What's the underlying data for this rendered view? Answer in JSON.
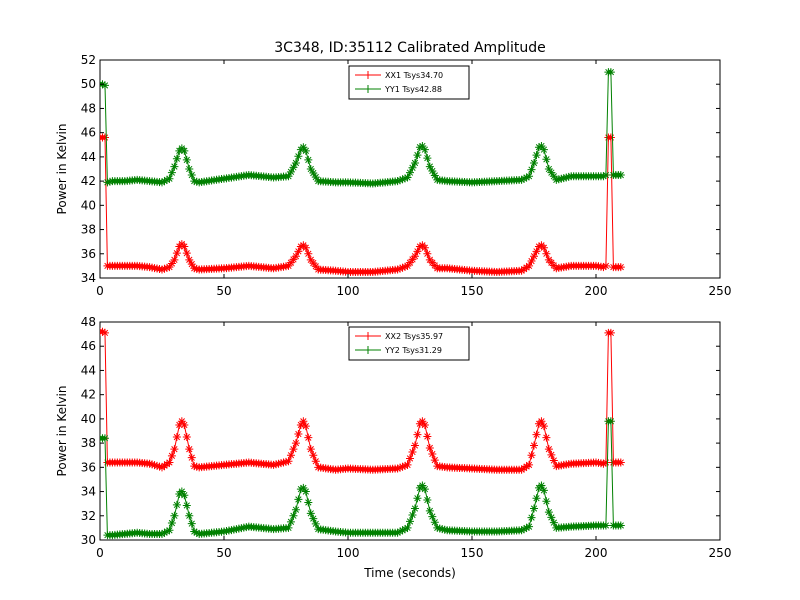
{
  "chart_data": [
    {
      "type": "line",
      "title": "3C348, ID:35112 Calibrated Amplitude",
      "xlabel": "",
      "ylabel": "Power in Kelvin",
      "xlim": [
        0,
        250
      ],
      "ylim": [
        34,
        52
      ],
      "xticks": [
        0,
        50,
        100,
        150,
        200,
        250
      ],
      "yticks": [
        34,
        36,
        38,
        40,
        42,
        44,
        46,
        48,
        50,
        52
      ],
      "grid": false,
      "legend_position": "top-center",
      "series": [
        {
          "name": "XX1 Tsys34.70",
          "color": "#ff0000",
          "marker": "star-plus",
          "points": [
            [
              0,
              45.6
            ],
            [
              1,
              45.6
            ],
            [
              2,
              45.6
            ],
            [
              3,
              35.0
            ],
            [
              5,
              35.0
            ],
            [
              10,
              35.0
            ],
            [
              15,
              35.0
            ],
            [
              20,
              34.9
            ],
            [
              25,
              34.7
            ],
            [
              28,
              34.9
            ],
            [
              30,
              35.5
            ],
            [
              32,
              36.6
            ],
            [
              33,
              36.8
            ],
            [
              34,
              36.6
            ],
            [
              36,
              35.5
            ],
            [
              38,
              34.8
            ],
            [
              40,
              34.7
            ],
            [
              50,
              34.8
            ],
            [
              60,
              35.0
            ],
            [
              70,
              34.8
            ],
            [
              76,
              35.0
            ],
            [
              79,
              35.8
            ],
            [
              81,
              36.6
            ],
            [
              82,
              36.7
            ],
            [
              83,
              36.5
            ],
            [
              85,
              35.5
            ],
            [
              88,
              34.7
            ],
            [
              95,
              34.6
            ],
            [
              100,
              34.5
            ],
            [
              110,
              34.5
            ],
            [
              120,
              34.7
            ],
            [
              124,
              35.0
            ],
            [
              127,
              35.8
            ],
            [
              129,
              36.6
            ],
            [
              130,
              36.7
            ],
            [
              131,
              36.5
            ],
            [
              133,
              35.5
            ],
            [
              136,
              34.8
            ],
            [
              140,
              34.8
            ],
            [
              150,
              34.6
            ],
            [
              160,
              34.5
            ],
            [
              170,
              34.6
            ],
            [
              173,
              35.0
            ],
            [
              175,
              35.8
            ],
            [
              177,
              36.6
            ],
            [
              178,
              36.7
            ],
            [
              179,
              36.5
            ],
            [
              181,
              35.5
            ],
            [
              184,
              34.8
            ],
            [
              190,
              35.0
            ],
            [
              200,
              35.0
            ],
            [
              203,
              34.9
            ],
            [
              204,
              35.0
            ],
            [
              205,
              45.6
            ],
            [
              206,
              45.6
            ],
            [
              207,
              34.9
            ],
            [
              209,
              34.9
            ],
            [
              210,
              34.9
            ]
          ]
        },
        {
          "name": "YY1 Tsys42.88",
          "color": "#008000",
          "marker": "star-plus",
          "points": [
            [
              0,
              50.0
            ],
            [
              1,
              50.0
            ],
            [
              2,
              49.9
            ],
            [
              3,
              41.9
            ],
            [
              5,
              42.0
            ],
            [
              10,
              42.0
            ],
            [
              15,
              42.1
            ],
            [
              20,
              42.0
            ],
            [
              25,
              41.9
            ],
            [
              28,
              42.2
            ],
            [
              30,
              43.2
            ],
            [
              32,
              44.5
            ],
            [
              33,
              44.7
            ],
            [
              34,
              44.5
            ],
            [
              36,
              43.0
            ],
            [
              38,
              42.0
            ],
            [
              40,
              41.9
            ],
            [
              50,
              42.2
            ],
            [
              60,
              42.5
            ],
            [
              70,
              42.3
            ],
            [
              76,
              42.4
            ],
            [
              79,
              43.5
            ],
            [
              81,
              44.6
            ],
            [
              82,
              44.8
            ],
            [
              83,
              44.5
            ],
            [
              85,
              43.0
            ],
            [
              88,
              42.0
            ],
            [
              95,
              41.9
            ],
            [
              100,
              41.9
            ],
            [
              110,
              41.8
            ],
            [
              120,
              42.0
            ],
            [
              124,
              42.3
            ],
            [
              127,
              43.5
            ],
            [
              129,
              44.8
            ],
            [
              130,
              44.9
            ],
            [
              131,
              44.6
            ],
            [
              133,
              43.2
            ],
            [
              136,
              42.1
            ],
            [
              140,
              42.0
            ],
            [
              150,
              41.9
            ],
            [
              160,
              42.0
            ],
            [
              170,
              42.1
            ],
            [
              173,
              42.4
            ],
            [
              175,
              43.5
            ],
            [
              177,
              44.8
            ],
            [
              178,
              44.9
            ],
            [
              179,
              44.6
            ],
            [
              181,
              43.0
            ],
            [
              184,
              42.1
            ],
            [
              190,
              42.4
            ],
            [
              200,
              42.4
            ],
            [
              203,
              42.4
            ],
            [
              204,
              42.5
            ],
            [
              205,
              51.0
            ],
            [
              206,
              51.0
            ],
            [
              207,
              42.5
            ],
            [
              209,
              42.5
            ],
            [
              210,
              42.5
            ]
          ]
        }
      ]
    },
    {
      "type": "line",
      "title": "",
      "xlabel": "Time (seconds)",
      "ylabel": "Power in Kelvin",
      "xlim": [
        0,
        250
      ],
      "ylim": [
        30,
        48
      ],
      "xticks": [
        0,
        50,
        100,
        150,
        200,
        250
      ],
      "yticks": [
        30,
        32,
        34,
        36,
        38,
        40,
        42,
        44,
        46,
        48
      ],
      "grid": false,
      "legend_position": "top-center",
      "series": [
        {
          "name": "XX2 Tsys35.97",
          "color": "#ff0000",
          "marker": "star-plus",
          "points": [
            [
              0,
              47.2
            ],
            [
              1,
              47.2
            ],
            [
              2,
              47.1
            ],
            [
              3,
              36.4
            ],
            [
              5,
              36.4
            ],
            [
              10,
              36.4
            ],
            [
              15,
              36.4
            ],
            [
              20,
              36.3
            ],
            [
              25,
              36.0
            ],
            [
              28,
              36.4
            ],
            [
              30,
              37.5
            ],
            [
              32,
              39.5
            ],
            [
              33,
              39.8
            ],
            [
              34,
              39.5
            ],
            [
              36,
              37.5
            ],
            [
              38,
              36.1
            ],
            [
              40,
              36.0
            ],
            [
              50,
              36.2
            ],
            [
              60,
              36.4
            ],
            [
              70,
              36.2
            ],
            [
              76,
              36.5
            ],
            [
              79,
              38.0
            ],
            [
              81,
              39.5
            ],
            [
              82,
              39.8
            ],
            [
              83,
              39.4
            ],
            [
              85,
              37.5
            ],
            [
              88,
              36.0
            ],
            [
              95,
              35.8
            ],
            [
              100,
              35.9
            ],
            [
              110,
              35.8
            ],
            [
              120,
              35.9
            ],
            [
              124,
              36.2
            ],
            [
              127,
              37.8
            ],
            [
              129,
              39.6
            ],
            [
              130,
              39.8
            ],
            [
              131,
              39.5
            ],
            [
              133,
              37.6
            ],
            [
              136,
              36.1
            ],
            [
              140,
              36.0
            ],
            [
              150,
              35.9
            ],
            [
              160,
              35.8
            ],
            [
              170,
              35.8
            ],
            [
              173,
              36.2
            ],
            [
              175,
              37.8
            ],
            [
              177,
              39.6
            ],
            [
              178,
              39.8
            ],
            [
              179,
              39.4
            ],
            [
              181,
              37.5
            ],
            [
              184,
              36.1
            ],
            [
              190,
              36.3
            ],
            [
              200,
              36.4
            ],
            [
              203,
              36.3
            ],
            [
              204,
              36.4
            ],
            [
              205,
              47.1
            ],
            [
              206,
              47.1
            ],
            [
              207,
              36.4
            ],
            [
              209,
              36.4
            ],
            [
              210,
              36.4
            ]
          ]
        },
        {
          "name": "YY2 Tsys31.29",
          "color": "#008000",
          "marker": "star-plus",
          "points": [
            [
              0,
              38.4
            ],
            [
              1,
              38.4
            ],
            [
              2,
              38.4
            ],
            [
              3,
              30.4
            ],
            [
              5,
              30.4
            ],
            [
              10,
              30.5
            ],
            [
              15,
              30.6
            ],
            [
              20,
              30.5
            ],
            [
              25,
              30.5
            ],
            [
              28,
              30.8
            ],
            [
              30,
              32.0
            ],
            [
              32,
              33.8
            ],
            [
              33,
              34.0
            ],
            [
              34,
              33.7
            ],
            [
              36,
              32.0
            ],
            [
              38,
              30.7
            ],
            [
              40,
              30.5
            ],
            [
              50,
              30.7
            ],
            [
              60,
              31.1
            ],
            [
              70,
              30.9
            ],
            [
              76,
              31.0
            ],
            [
              79,
              32.5
            ],
            [
              81,
              34.2
            ],
            [
              82,
              34.3
            ],
            [
              83,
              34.0
            ],
            [
              85,
              32.2
            ],
            [
              88,
              30.9
            ],
            [
              95,
              30.7
            ],
            [
              100,
              30.6
            ],
            [
              110,
              30.6
            ],
            [
              120,
              30.6
            ],
            [
              124,
              31.0
            ],
            [
              127,
              32.6
            ],
            [
              129,
              34.3
            ],
            [
              130,
              34.5
            ],
            [
              131,
              34.2
            ],
            [
              133,
              32.4
            ],
            [
              136,
              31.0
            ],
            [
              140,
              30.8
            ],
            [
              150,
              30.7
            ],
            [
              160,
              30.7
            ],
            [
              170,
              30.8
            ],
            [
              173,
              31.1
            ],
            [
              175,
              32.6
            ],
            [
              177,
              34.3
            ],
            [
              178,
              34.5
            ],
            [
              179,
              34.1
            ],
            [
              181,
              32.3
            ],
            [
              184,
              31.0
            ],
            [
              190,
              31.1
            ],
            [
              200,
              31.2
            ],
            [
              203,
              31.2
            ],
            [
              204,
              31.2
            ],
            [
              205,
              39.8
            ],
            [
              206,
              39.8
            ],
            [
              207,
              31.2
            ],
            [
              209,
              31.2
            ],
            [
              210,
              31.2
            ]
          ]
        }
      ]
    }
  ]
}
